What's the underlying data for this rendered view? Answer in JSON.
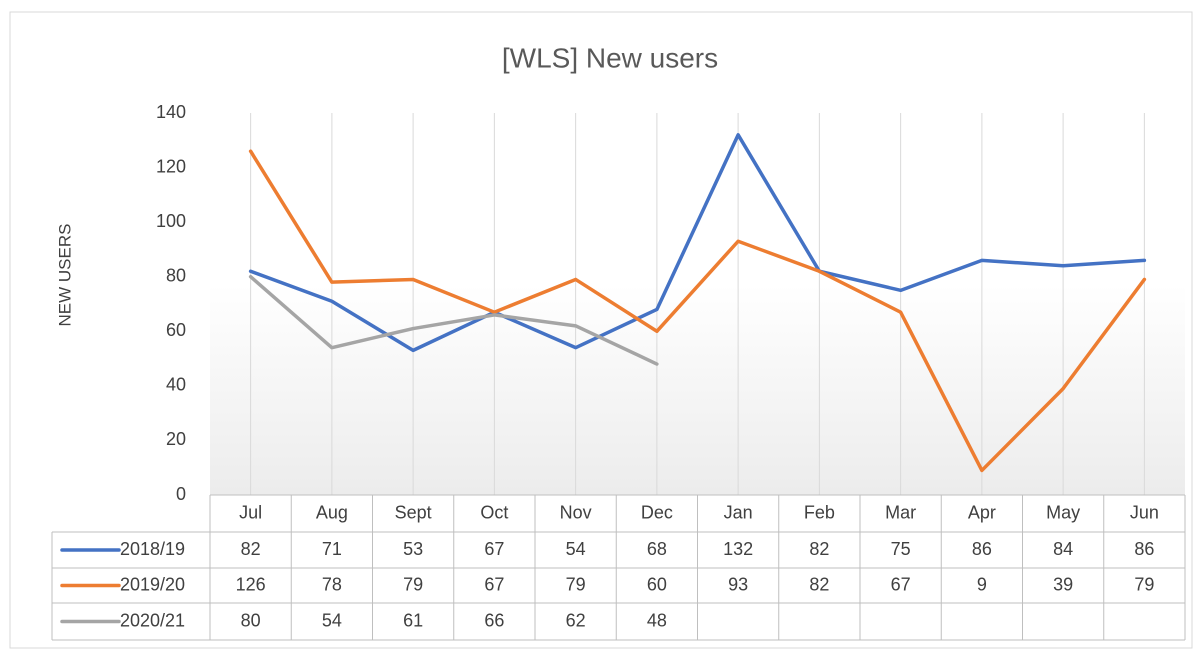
{
  "chart_data": {
    "type": "line",
    "title": "[WLS] New users",
    "y_label": "NEW USERS",
    "categories": [
      "Jul",
      "Aug",
      "Sept",
      "Oct",
      "Nov",
      "Dec",
      "Jan",
      "Feb",
      "Mar",
      "Apr",
      "May",
      "Jun"
    ],
    "series": [
      {
        "name": "2018/19",
        "color": "#4472c4",
        "values": [
          82,
          71,
          53,
          67,
          54,
          68,
          132,
          82,
          75,
          86,
          84,
          86
        ]
      },
      {
        "name": "2019/20",
        "color": "#ed7d31",
        "values": [
          126,
          78,
          79,
          67,
          79,
          60,
          93,
          82,
          67,
          9,
          39,
          79
        ]
      },
      {
        "name": "2020/21",
        "color": "#a5a5a5",
        "values": [
          80,
          54,
          61,
          66,
          62,
          48,
          null,
          null,
          null,
          null,
          null,
          null
        ]
      }
    ],
    "ylim": [
      0,
      140
    ],
    "yticks": [
      0,
      20,
      40,
      60,
      80,
      100,
      120,
      140
    ],
    "data_table": true
  }
}
